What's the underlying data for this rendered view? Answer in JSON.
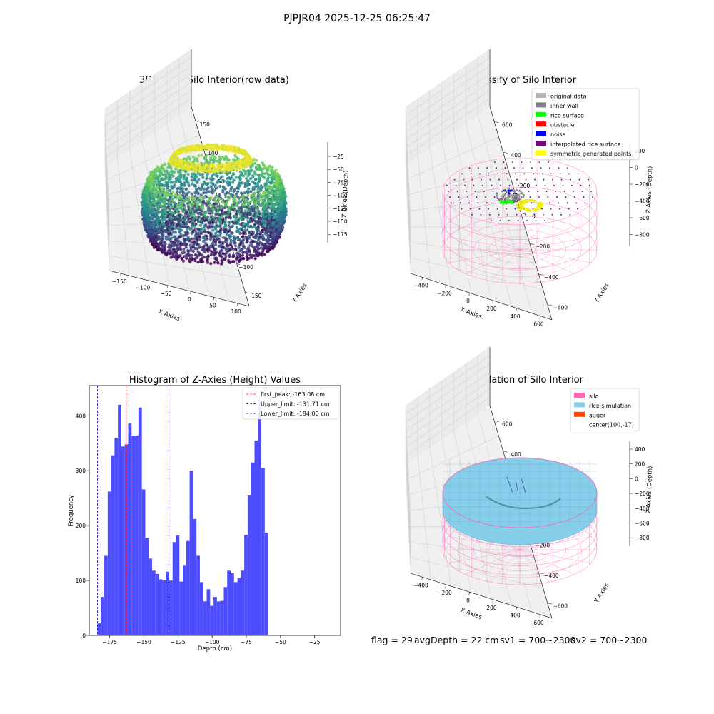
{
  "figure": {
    "suptitle": "PJPJR04 2025-12-25 06:25:47",
    "status": {
      "flag": "flag = 29",
      "avg_depth": "avgDepth = 22 cm",
      "sv1": "sv1 = 700~2300",
      "sv2": "sv2 = 700~2300"
    }
  },
  "chart_data": [
    {
      "type": "scatter",
      "projection": "3d",
      "title": "3D Plot of Silo Interior(row data)",
      "xlabel": "X Axies",
      "ylabel": "Y Axies",
      "zlabel": "Z Axies (Depth)",
      "x_ticks": [
        "−150",
        "−100",
        "−50",
        "0",
        "50",
        "100"
      ],
      "y_ticks": [
        "−150",
        "−100",
        "−50",
        "0",
        "50",
        "100",
        "150"
      ],
      "z_ticks": [
        "−25",
        "−50",
        "−75",
        "−100",
        "−125",
        "−150",
        "−175"
      ],
      "xlim": [
        -150,
        120
      ],
      "ylim": [
        -150,
        150
      ],
      "zlim": [
        -190,
        -10
      ],
      "colormap": "viridis"
    },
    {
      "type": "scatter",
      "projection": "3d",
      "title": "3D classify of Silo Interior",
      "xlabel": "X Axies",
      "ylabel": "Y Axies",
      "zlabel": "Z Axies (Depth)",
      "x_ticks": [
        "−400",
        "−200",
        "0",
        "200",
        "400",
        "600"
      ],
      "y_ticks": [
        "−600",
        "−400",
        "−200",
        "0",
        "200",
        "400",
        "600"
      ],
      "z_ticks": [
        "200",
        "0",
        "−200",
        "−400",
        "−600",
        "−800"
      ],
      "legend": [
        {
          "label": "original data",
          "color": "#b3b3b3"
        },
        {
          "label": "inner wall",
          "color": "#808080"
        },
        {
          "label": "rice surface",
          "color": "#00ff00"
        },
        {
          "label": "obstacle",
          "color": "#ff0000"
        },
        {
          "label": "noise",
          "color": "#0000ff"
        },
        {
          "label": "interpolated rice surface",
          "color": "#800080"
        },
        {
          "label": "symmetric generated points",
          "color": "#ffff00"
        }
      ],
      "legend_position": "upper right",
      "silo_color": "#ff69b4"
    },
    {
      "type": "bar",
      "title": "Histogram of Z-Axies (Height) Values",
      "xlabel": "Depth (cm)",
      "ylabel": "Frequency",
      "x_ticks": [
        -175,
        -150,
        -125,
        -100,
        -75,
        -50,
        -25
      ],
      "x_tick_labels": [
        "−175",
        "−150",
        "−125",
        "−100",
        "−75",
        "−50",
        "−25"
      ],
      "y_ticks": [
        0,
        100,
        200,
        300,
        400
      ],
      "xlim": [
        -190,
        -6
      ],
      "ylim": [
        0,
        455
      ],
      "bin_start": -184,
      "bin_width": 2.5,
      "values": [
        22,
        70,
        145,
        262,
        328,
        360,
        420,
        344,
        348,
        386,
        364,
        364,
        415,
        266,
        178,
        140,
        118,
        112,
        102,
        100,
        116,
        100,
        170,
        182,
        98,
        127,
        172,
        300,
        212,
        145,
        97,
        62,
        84,
        54,
        70,
        62,
        63,
        88,
        118,
        113,
        97,
        105,
        118,
        183,
        256,
        315,
        355,
        430,
        305,
        187
      ],
      "bar_color": "#4d4dff",
      "vlines": [
        {
          "x": -163.08,
          "color": "#ff0000",
          "label": "first_peak: -163.08 cm"
        },
        {
          "x": -131.71,
          "color": "#0000cc",
          "label": "Upper_limit: -131.71 cm"
        },
        {
          "x": -184.0,
          "color": "#0000cc",
          "label": "Lower_limit: -184.00 cm"
        }
      ],
      "legend_position": "upper right"
    },
    {
      "type": "surface",
      "projection": "3d",
      "title": "3D simulation of Silo Interior",
      "xlabel": "X Axies",
      "ylabel": "Y Axies",
      "zlabel": "Z Axies (Depth)",
      "x_ticks": [
        "−400",
        "−200",
        "0",
        "200",
        "400",
        "600"
      ],
      "y_ticks": [
        "−600",
        "−400",
        "−200",
        "0",
        "200",
        "400",
        "600"
      ],
      "z_ticks": [
        "400",
        "200",
        "0",
        "−200",
        "−400",
        "−600",
        "−800"
      ],
      "legend": [
        {
          "label": "silo",
          "color": "#ff69b4"
        },
        {
          "label": "rice simulation",
          "color": "#87ceeb"
        },
        {
          "label": "auger",
          "color": "#ff4500"
        },
        {
          "label": "center(100,-17)",
          "color": ""
        }
      ],
      "legend_position": "upper right"
    }
  ]
}
